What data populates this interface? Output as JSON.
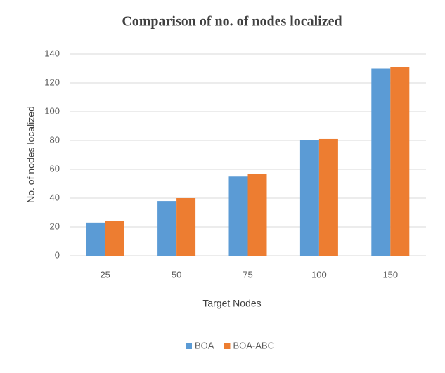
{
  "chart_data": {
    "type": "bar",
    "title": "Comparison of no. of nodes localized",
    "x_label": "Target Nodes",
    "y_label": "No. of nodes localized",
    "categories": [
      "25",
      "50",
      "75",
      "100",
      "150"
    ],
    "series": [
      {
        "name": "BOA",
        "color": "#5b9bd5",
        "values": [
          23,
          38,
          55,
          80,
          130
        ]
      },
      {
        "name": "BOA-ABC",
        "color": "#ed7d31",
        "values": [
          24,
          40,
          57,
          81,
          131
        ]
      }
    ],
    "ylim": [
      0,
      140
    ],
    "yticks": [
      0,
      20,
      40,
      60,
      80,
      100,
      120,
      140
    ],
    "grid": true,
    "legend": "bottom"
  }
}
